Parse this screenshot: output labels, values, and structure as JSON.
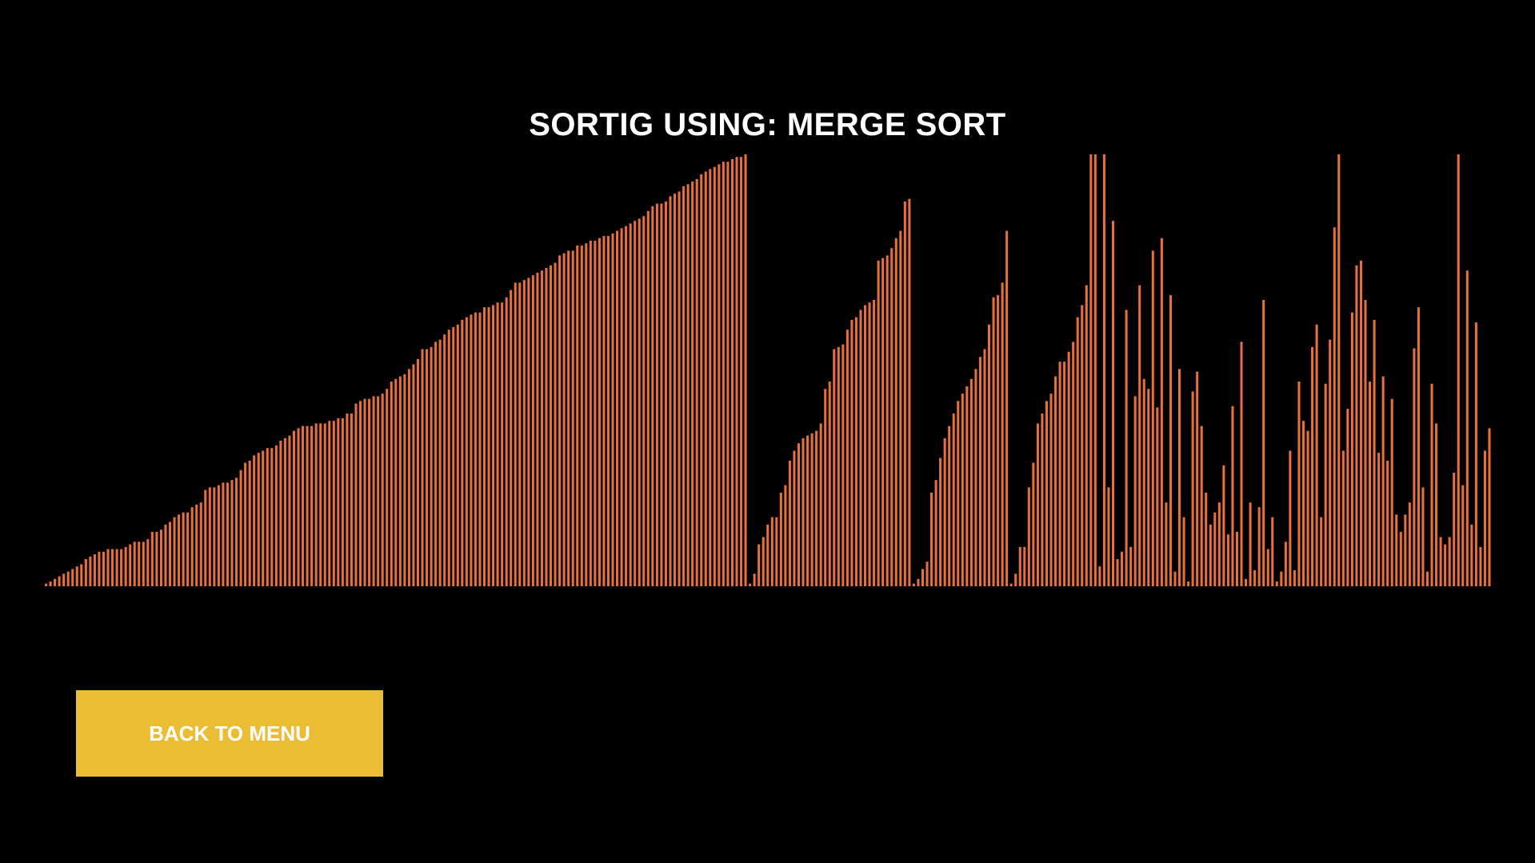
{
  "header": {
    "title": "SORTIG USING: MERGE SORT"
  },
  "buttons": {
    "back_label": "BACK TO MENU"
  },
  "colors": {
    "background": "#000000",
    "bar": "#e8703a",
    "button": "#ebbd35",
    "text": "#ffffff"
  },
  "chart_data": {
    "type": "bar",
    "ylim": [
      0,
      100
    ],
    "values": [
      0.6,
      1.1,
      1.7,
      2.3,
      2.9,
      3.4,
      4.0,
      4.6,
      5.1,
      6.3,
      6.9,
      7.4,
      8.0,
      8.0,
      8.6,
      8.6,
      8.6,
      8.6,
      9.1,
      9.7,
      10.3,
      10.3,
      10.3,
      10.9,
      12.6,
      12.6,
      13.1,
      14.3,
      14.9,
      16.0,
      16.6,
      17.1,
      17.1,
      18.3,
      18.9,
      19.4,
      22.3,
      22.9,
      22.9,
      23.4,
      24.0,
      24.0,
      24.6,
      25.1,
      26.9,
      28.6,
      29.1,
      30.3,
      30.9,
      31.4,
      32.0,
      32.0,
      32.6,
      33.7,
      34.3,
      34.9,
      36.0,
      36.6,
      37.1,
      37.1,
      37.1,
      37.7,
      37.7,
      37.7,
      38.3,
      38.3,
      38.9,
      38.9,
      40.0,
      40.0,
      42.3,
      42.9,
      43.4,
      43.4,
      44.0,
      44.0,
      44.6,
      45.7,
      47.4,
      48.0,
      48.6,
      49.1,
      50.3,
      51.4,
      52.6,
      54.9,
      54.9,
      55.4,
      56.6,
      57.1,
      58.3,
      59.4,
      60.0,
      60.6,
      61.7,
      62.3,
      62.9,
      63.4,
      63.4,
      64.6,
      64.6,
      65.1,
      65.7,
      65.7,
      66.9,
      68.6,
      70.3,
      70.3,
      70.9,
      71.4,
      72.0,
      72.6,
      73.1,
      73.7,
      74.3,
      74.9,
      76.6,
      77.1,
      77.7,
      77.7,
      78.9,
      78.9,
      79.4,
      80.0,
      80.0,
      80.6,
      81.1,
      81.1,
      81.7,
      82.3,
      82.9,
      83.4,
      84.0,
      84.6,
      85.1,
      85.7,
      86.9,
      88.0,
      88.6,
      88.6,
      89.1,
      90.3,
      90.9,
      91.4,
      92.6,
      93.1,
      93.7,
      94.3,
      95.4,
      96.0,
      96.6,
      97.1,
      97.7,
      98.3,
      98.3,
      98.9,
      99.4,
      99.4,
      100.0,
      0.6,
      2.9,
      9.7,
      11.4,
      14.3,
      16.0,
      16.0,
      21.7,
      23.4,
      29.1,
      31.4,
      33.1,
      34.3,
      34.9,
      35.4,
      36.0,
      37.7,
      45.7,
      47.4,
      54.9,
      55.4,
      56.0,
      59.4,
      61.7,
      62.3,
      64.0,
      65.1,
      65.7,
      66.3,
      75.4,
      76.0,
      76.6,
      78.3,
      80.6,
      82.3,
      89.1,
      89.7,
      0.6,
      1.7,
      4.0,
      5.7,
      21.7,
      24.6,
      29.7,
      34.3,
      37.1,
      40.0,
      42.9,
      44.6,
      46.3,
      48.0,
      50.3,
      53.1,
      54.9,
      60.6,
      66.9,
      67.4,
      70.3,
      82.3,
      0.6,
      2.9,
      9.1,
      9.1,
      22.9,
      28.6,
      37.7,
      40.0,
      42.9,
      44.6,
      48.6,
      52.0,
      52.0,
      54.3,
      56.6,
      62.3,
      65.1,
      69.7,
      100.0,
      100.0,
      4.6,
      100.0,
      22.9,
      84.6,
      6.3,
      8.0,
      64.0,
      9.1,
      44.0,
      69.7,
      48.0,
      45.7,
      77.7,
      41.4,
      80.6,
      19.4,
      67.4,
      3.4,
      50.3,
      16.0,
      1.1,
      45.1,
      49.7,
      37.1,
      21.7,
      14.3,
      17.1,
      19.4,
      28.0,
      12.0,
      41.7,
      12.6,
      56.6,
      1.7,
      19.4,
      3.7,
      18.3,
      66.3,
      8.6,
      16.0,
      1.1,
      3.4,
      10.3,
      31.4,
      3.7,
      47.4,
      38.3,
      36.0,
      55.4,
      60.6,
      16.0,
      46.9,
      57.1,
      83.1,
      100.0,
      31.4,
      41.1,
      63.4,
      74.3,
      75.4,
      66.3,
      47.4,
      61.7,
      30.9,
      48.6,
      29.1,
      43.4,
      16.6,
      12.6,
      16.6,
      19.4,
      55.1,
      64.6,
      22.9,
      3.4,
      46.9,
      37.7,
      11.4,
      9.7,
      11.4,
      26.3,
      100.0,
      23.4,
      73.1,
      14.3,
      61.1,
      9.1,
      31.4,
      36.6
    ]
  }
}
